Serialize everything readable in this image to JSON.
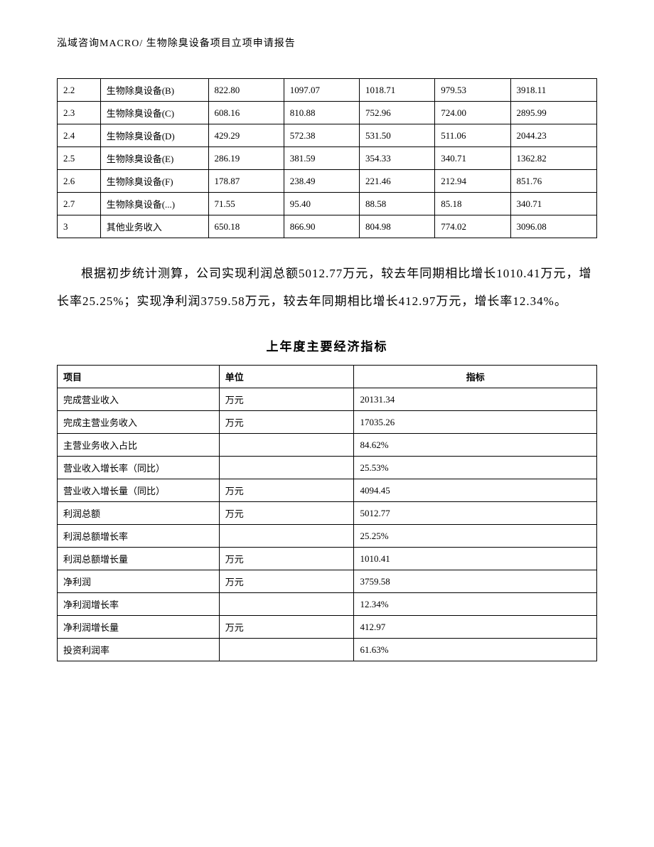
{
  "header": "泓域咨询MACRO/    生物除臭设备项目立项申请报告",
  "table1": {
    "type": "table",
    "border_color": "#000000",
    "background_color": "#ffffff",
    "text_color": "#000000",
    "font_size_pt": 10,
    "column_widths_pct": [
      8,
      20,
      14,
      14,
      14,
      14,
      16
    ],
    "rows": [
      [
        "2.2",
        "生物除臭设备(B)",
        "822.80",
        "1097.07",
        "1018.71",
        "979.53",
        "3918.11"
      ],
      [
        "2.3",
        "生物除臭设备(C)",
        "608.16",
        "810.88",
        "752.96",
        "724.00",
        "2895.99"
      ],
      [
        "2.4",
        "生物除臭设备(D)",
        "429.29",
        "572.38",
        "531.50",
        "511.06",
        "2044.23"
      ],
      [
        "2.5",
        "生物除臭设备(E)",
        "286.19",
        "381.59",
        "354.33",
        "340.71",
        "1362.82"
      ],
      [
        "2.6",
        "生物除臭设备(F)",
        "178.87",
        "238.49",
        "221.46",
        "212.94",
        "851.76"
      ],
      [
        "2.7",
        "生物除臭设备(...)",
        "71.55",
        "95.40",
        "88.58",
        "85.18",
        "340.71"
      ],
      [
        "3",
        "其他业务收入",
        "650.18",
        "866.90",
        "804.98",
        "774.02",
        "3096.08"
      ]
    ]
  },
  "paragraph": "根据初步统计测算，公司实现利润总额5012.77万元，较去年同期相比增长1010.41万元，增长率25.25%；实现净利润3759.58万元，较去年同期相比增长412.97万元，增长率12.34%。",
  "subtitle": "上年度主要经济指标",
  "table2": {
    "type": "table",
    "border_color": "#000000",
    "background_color": "#ffffff",
    "text_color": "#000000",
    "font_size_pt": 10,
    "column_widths_pct": [
      30,
      25,
      45
    ],
    "columns": [
      "项目",
      "单位",
      "指标"
    ],
    "rows": [
      [
        "完成营业收入",
        "万元",
        "20131.34"
      ],
      [
        "完成主营业务收入",
        "万元",
        "17035.26"
      ],
      [
        "主营业务收入占比",
        "",
        "84.62%"
      ],
      [
        "营业收入增长率（同比）",
        "",
        "25.53%"
      ],
      [
        "营业收入增长量（同比）",
        "万元",
        "4094.45"
      ],
      [
        "利润总额",
        "万元",
        "5012.77"
      ],
      [
        "利润总额增长率",
        "",
        "25.25%"
      ],
      [
        "利润总额增长量",
        "万元",
        "1010.41"
      ],
      [
        "净利润",
        "万元",
        "3759.58"
      ],
      [
        "净利润增长率",
        "",
        "12.34%"
      ],
      [
        "净利润增长量",
        "万元",
        "412.97"
      ],
      [
        "投资利润率",
        "",
        "61.63%"
      ]
    ]
  }
}
